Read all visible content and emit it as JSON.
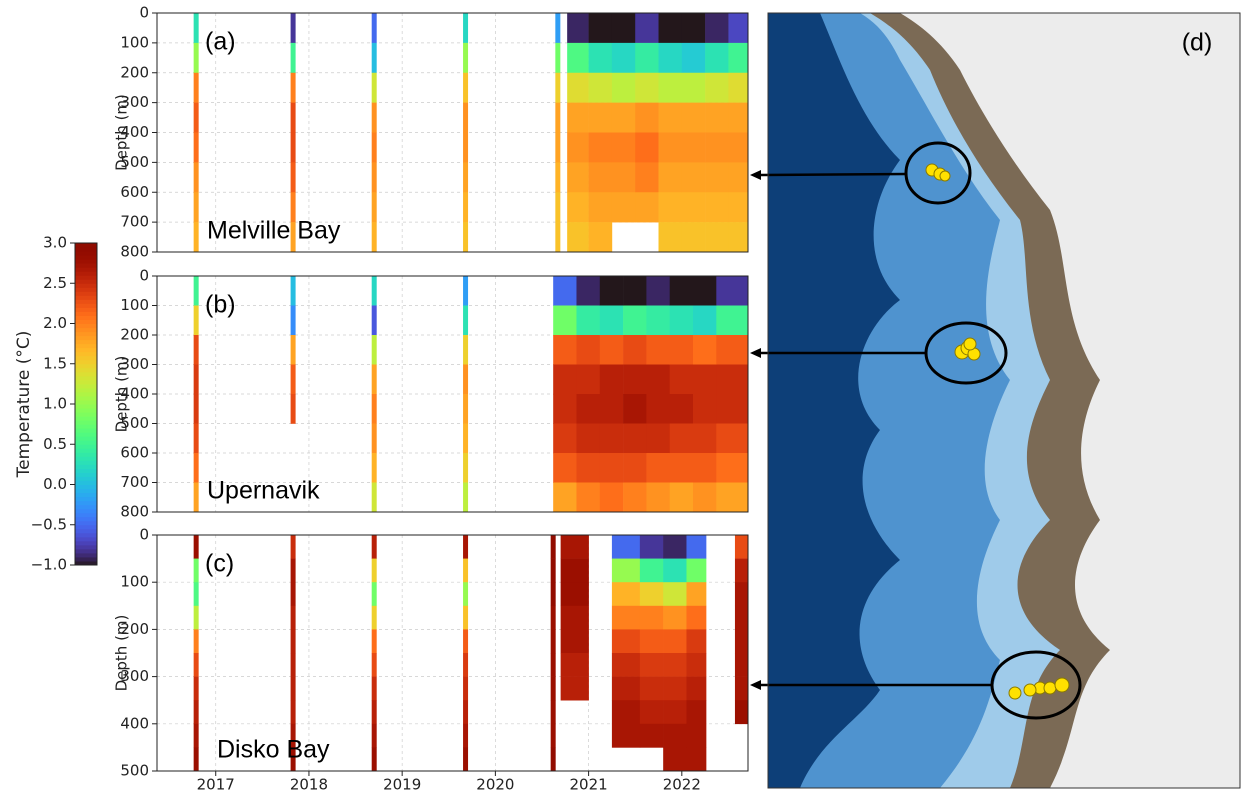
{
  "chart_data": [
    {
      "type": "heatmap",
      "label": "(a)",
      "region": "Melville Bay",
      "ylabel": "Depth (m)",
      "ylim": [
        800,
        0
      ],
      "yticks": [
        0,
        100,
        200,
        300,
        400,
        500,
        600,
        700,
        800
      ],
      "xlim": [
        2016.37,
        2022.71
      ],
      "grid": true,
      "depth_edges": [
        0,
        100,
        200,
        300,
        400,
        500,
        600,
        700,
        800
      ],
      "casts": {
        "x": [
          2016.79,
          2017.83,
          2018.7,
          2019.68,
          2020.67
        ],
        "values": [
          [
            0.3,
            1.0,
            2.0,
            2.2,
            2.1,
            1.9,
            1.8,
            1.7
          ],
          [
            -0.8,
            0.5,
            2.0,
            2.3,
            2.3,
            2.2,
            2.0,
            1.8
          ],
          [
            -0.5,
            0.0,
            1.3,
            1.9,
            2.0,
            1.9,
            1.8,
            1.7
          ],
          [
            0.2,
            1.0,
            1.6,
            1.9,
            1.9,
            1.8,
            1.7,
            1.6
          ],
          [
            -0.2,
            0.8,
            1.5,
            1.8,
            1.8,
            1.7,
            1.6,
            1.6
          ]
        ]
      },
      "mooring": {
        "x_edges": [
          2020.77,
          2021.0,
          2021.25,
          2021.5,
          2021.75,
          2022.0,
          2022.25,
          2022.5,
          2022.71
        ],
        "values": [
          [
            -0.9,
            0.6,
            1.4,
            1.8,
            1.9,
            1.8,
            1.7,
            1.6
          ],
          [
            -1.0,
            0.3,
            1.3,
            1.8,
            2.0,
            1.9,
            1.8,
            1.7
          ],
          [
            -1.0,
            0.2,
            1.2,
            1.8,
            2.0,
            1.9,
            1.8,
            null
          ],
          [
            -0.8,
            0.4,
            1.3,
            1.9,
            2.1,
            2.0,
            1.8,
            null
          ],
          [
            -1.0,
            0.2,
            1.2,
            1.8,
            1.9,
            1.8,
            1.7,
            1.6
          ],
          [
            -1.0,
            0.1,
            1.2,
            1.8,
            1.9,
            1.8,
            1.7,
            1.6
          ],
          [
            -0.9,
            0.3,
            1.3,
            1.8,
            1.9,
            1.8,
            1.7,
            1.6
          ],
          [
            -0.7,
            0.5,
            1.4,
            1.8,
            1.9,
            1.8,
            1.7,
            1.6
          ]
        ]
      }
    },
    {
      "type": "heatmap",
      "label": "(b)",
      "region": "Upernavik",
      "ylabel": "Depth (m)",
      "ylim": [
        800,
        0
      ],
      "yticks": [
        0,
        100,
        200,
        300,
        400,
        500,
        600,
        700,
        800
      ],
      "xlim": [
        2016.37,
        2022.71
      ],
      "grid": true,
      "depth_edges": [
        0,
        100,
        200,
        300,
        400,
        500,
        600,
        700,
        800
      ],
      "casts": {
        "x": [
          2016.79,
          2017.83,
          2018.7,
          2019.68
        ],
        "values": [
          [
            0.5,
            1.5,
            2.3,
            2.4,
            2.4,
            2.3,
            2.1,
            1.8
          ],
          [
            0.0,
            -0.3,
            1.8,
            2.2,
            2.3,
            null,
            null,
            null
          ],
          [
            0.2,
            -0.6,
            1.2,
            1.8,
            2.0,
            1.9,
            1.7,
            1.3
          ],
          [
            -0.2,
            0.3,
            1.5,
            1.9,
            1.8,
            1.7,
            1.5,
            1.2
          ]
        ]
      },
      "mooring": {
        "x_edges": [
          2020.62,
          2020.87,
          2021.12,
          2021.37,
          2021.62,
          2021.87,
          2022.12,
          2022.37,
          2022.71
        ],
        "values": [
          [
            -0.5,
            0.8,
            2.2,
            2.5,
            2.5,
            2.4,
            2.2,
            1.8
          ],
          [
            -0.9,
            0.4,
            2.3,
            2.5,
            2.6,
            2.5,
            2.3,
            2.0
          ],
          [
            -1.0,
            0.3,
            2.2,
            2.6,
            2.6,
            2.5,
            2.3,
            2.1
          ],
          [
            -1.0,
            0.5,
            2.3,
            2.6,
            2.7,
            2.5,
            2.3,
            2.0
          ],
          [
            -0.9,
            0.4,
            2.2,
            2.6,
            2.6,
            2.5,
            2.2,
            1.9
          ],
          [
            -1.0,
            0.3,
            2.2,
            2.5,
            2.6,
            2.4,
            2.2,
            1.8
          ],
          [
            -1.0,
            0.2,
            2.1,
            2.5,
            2.5,
            2.4,
            2.2,
            1.9
          ],
          [
            -0.8,
            0.5,
            2.2,
            2.5,
            2.5,
            2.3,
            2.1,
            1.8
          ]
        ]
      }
    },
    {
      "type": "heatmap",
      "label": "(c)",
      "region": "Disko Bay",
      "ylabel": "Depth (m)",
      "ylim": [
        500,
        0
      ],
      "yticks": [
        0,
        100,
        200,
        300,
        400,
        500
      ],
      "xlim": [
        2016.37,
        2022.71
      ],
      "xticks": [
        2017,
        2018,
        2019,
        2020,
        2021,
        2022
      ],
      "grid": true,
      "depth_edges": [
        0,
        50,
        100,
        150,
        200,
        250,
        300,
        350,
        400,
        450,
        500
      ],
      "casts": {
        "x": [
          2016.79,
          2017.83,
          2018.7,
          2019.68,
          2020.62
        ],
        "values": [
          [
            2.8,
            0.8,
            0.6,
            1.2,
            2.0,
            2.3,
            2.5,
            2.6,
            2.7,
            2.8
          ],
          [
            2.5,
            2.7,
            2.7,
            2.6,
            2.6,
            2.6,
            2.6,
            2.6,
            2.7,
            2.8
          ],
          [
            2.6,
            1.5,
            0.8,
            1.5,
            2.1,
            2.3,
            2.5,
            2.6,
            2.7,
            2.8
          ],
          [
            2.7,
            1.6,
            1.0,
            1.6,
            2.2,
            2.4,
            2.5,
            2.6,
            2.7,
            2.8
          ],
          [
            2.9,
            2.9,
            2.9,
            2.8,
            2.8,
            2.8,
            2.8,
            2.8,
            2.8,
            2.9
          ]
        ]
      },
      "mooring": {
        "x_edges": [
          2020.7,
          2021.0,
          2021.25,
          2021.55,
          2021.8,
          2022.05,
          2022.26,
          2022.57,
          2022.71
        ],
        "values": [
          [
            2.7,
            2.8,
            2.8,
            2.7,
            2.7,
            2.6,
            2.6,
            null,
            null,
            null
          ],
          [
            null,
            null,
            null,
            null,
            null,
            null,
            null,
            null,
            null,
            null
          ],
          [
            -0.5,
            1.0,
            1.7,
            2.0,
            2.3,
            2.5,
            2.6,
            2.7,
            2.7,
            null
          ],
          [
            -0.8,
            0.5,
            1.5,
            2.0,
            2.2,
            2.4,
            2.5,
            2.6,
            2.7,
            null
          ],
          [
            -0.9,
            0.3,
            1.3,
            1.9,
            2.2,
            2.4,
            2.5,
            2.6,
            2.7,
            2.7
          ],
          [
            -0.5,
            0.8,
            1.8,
            2.1,
            2.4,
            2.5,
            2.6,
            2.7,
            2.7,
            2.7
          ],
          [
            null,
            null,
            null,
            null,
            null,
            null,
            null,
            null,
            null,
            null
          ],
          [
            2.3,
            2.6,
            2.7,
            2.7,
            2.7,
            2.7,
            2.7,
            2.8,
            null,
            null
          ]
        ]
      }
    }
  ],
  "colorbar": {
    "label": "Temperature (°C)",
    "colormap": "turbo",
    "lim": [
      -1,
      3
    ],
    "ticks": [
      {
        "value": -1,
        "label": "−1.0"
      },
      {
        "value": -0.5,
        "label": "−0.5"
      },
      {
        "value": 0,
        "label": "0.0"
      },
      {
        "value": 0.5,
        "label": "0.5"
      },
      {
        "value": 1,
        "label": "1.0"
      },
      {
        "value": 1.5,
        "label": "1.5"
      },
      {
        "value": 2,
        "label": "2.0"
      },
      {
        "value": 2.5,
        "label": "2.5"
      },
      {
        "value": 3,
        "label": "3.0"
      }
    ]
  },
  "map": {
    "label": "(d)"
  }
}
